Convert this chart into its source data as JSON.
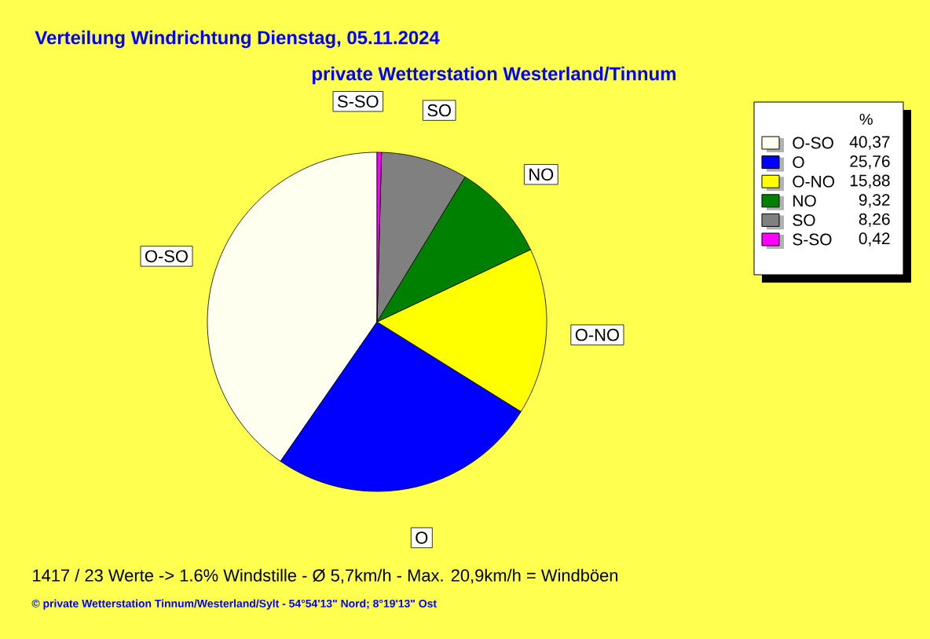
{
  "chart_data": {
    "type": "pie",
    "title": "Verteilung Windrichtung   Dienstag, 05.11.2024",
    "subtitle": "private Wetterstation Westerland/Tinnum",
    "categories": [
      "O-SO",
      "O",
      "O-NO",
      "NO",
      "SO",
      "S-SO"
    ],
    "values": [
      40.37,
      25.76,
      15.88,
      9.32,
      8.26,
      0.42
    ],
    "value_labels": [
      "40,37",
      "25,76",
      "15,88",
      "9,32",
      "8,26",
      "0,42"
    ],
    "colors": [
      "#fffff0",
      "#0000ff",
      "#ffff00",
      "#008000",
      "#808080",
      "#ff00ff"
    ],
    "legend": "right",
    "legend_title": "%",
    "annotations": [
      "1417 / 23 Werte  -> 1.6% Windstille   -   Ø 5,7km/h  -  Max. 20,9km/h = Windböen",
      "© private Wetterstation Tinnum/Westerland/Sylt  -  54°54'13\" Nord; 8°19'13\" Ost"
    ]
  }
}
